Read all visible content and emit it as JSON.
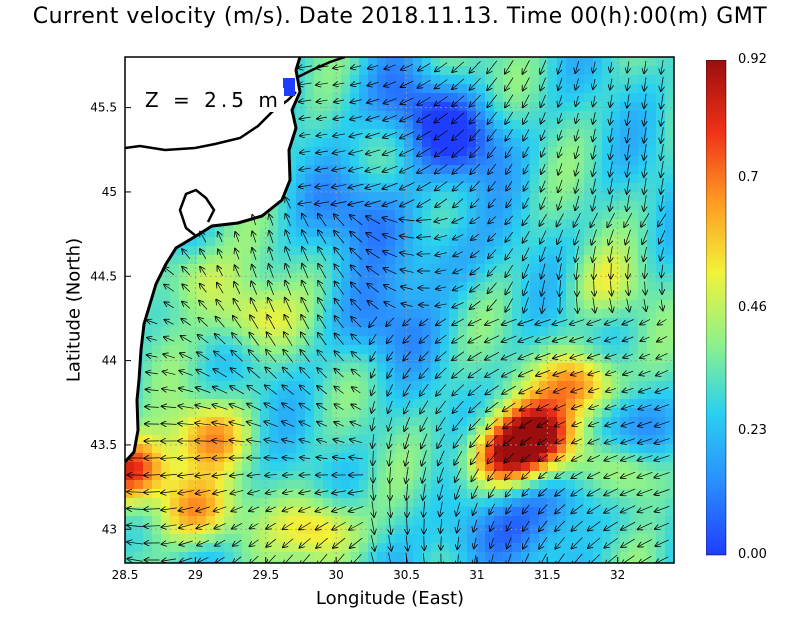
{
  "title": "Current velocity (m/s). Date 2018.11.13. Time 00(h):00(m) GMT",
  "depth_label": "Z = 2.5 m",
  "chart_data": {
    "type": "heatmap",
    "variable": "Current velocity (m/s)",
    "xlabel": "Longitude (East)",
    "ylabel": "Latitude (North)",
    "xlim": [
      28.5,
      32.4
    ],
    "ylim": [
      42.8,
      45.8
    ],
    "x_ticks": [
      "28.5",
      "29",
      "29.5",
      "30",
      "30.5",
      "31",
      "31.5",
      "32"
    ],
    "x_tick_values": [
      28.5,
      29,
      29.5,
      30,
      30.5,
      31,
      31.5,
      32
    ],
    "y_ticks": [
      "43",
      "43.5",
      "44",
      "44.5",
      "45",
      "45.5"
    ],
    "y_tick_values": [
      43,
      43.5,
      44,
      44.5,
      45,
      45.5
    ],
    "grid": true,
    "colorbar": {
      "ticks": [
        "0.92",
        "0.7",
        "0.46",
        "0.23",
        "0.00"
      ],
      "tick_values": [
        0.92,
        0.7,
        0.46,
        0.23,
        0.0
      ],
      "range": [
        0.0,
        0.92
      ],
      "colors": [
        "#1f3dff",
        "#2a8cff",
        "#29d0f0",
        "#8ef28a",
        "#f2f23a",
        "#ff9a22",
        "#f03018",
        "#9a0e0e"
      ]
    },
    "hotspots": [
      {
        "lon": 31.45,
        "lat": 43.55,
        "speed": 0.9
      },
      {
        "lon": 31.2,
        "lat": 43.42,
        "speed": 0.8
      },
      {
        "lon": 31.75,
        "lat": 43.85,
        "speed": 0.75
      },
      {
        "lon": 28.55,
        "lat": 43.35,
        "speed": 0.85
      },
      {
        "lon": 29.0,
        "lat": 43.1,
        "speed": 0.65
      },
      {
        "lon": 29.1,
        "lat": 43.55,
        "speed": 0.6
      },
      {
        "lon": 29.9,
        "lat": 43.0,
        "speed": 0.62
      },
      {
        "lon": 29.4,
        "lat": 44.25,
        "speed": 0.55
      },
      {
        "lon": 29.0,
        "lat": 44.5,
        "speed": 0.5
      },
      {
        "lon": 32.1,
        "lat": 43.35,
        "speed": 0.55
      },
      {
        "lon": 31.9,
        "lat": 44.45,
        "speed": 0.45
      },
      {
        "lon": 30.8,
        "lat": 45.7,
        "speed": 0.4
      }
    ],
    "lowspots": [
      {
        "lon": 30.9,
        "lat": 45.3,
        "speed": 0.05
      },
      {
        "lon": 30.5,
        "lat": 45.55,
        "speed": 0.08
      },
      {
        "lon": 30.2,
        "lat": 44.9,
        "speed": 0.12
      },
      {
        "lon": 30.3,
        "lat": 44.2,
        "speed": 0.15
      },
      {
        "lon": 31.0,
        "lat": 42.95,
        "speed": 0.12
      },
      {
        "lon": 31.6,
        "lat": 43.2,
        "speed": 0.1
      },
      {
        "lon": 32.0,
        "lat": 43.6,
        "speed": 0.12
      },
      {
        "lon": 30.7,
        "lat": 44.6,
        "speed": 0.15
      }
    ]
  }
}
